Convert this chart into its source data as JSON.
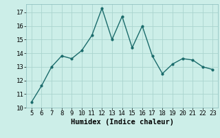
{
  "x": [
    5,
    6,
    7,
    8,
    9,
    10,
    11,
    12,
    13,
    14,
    15,
    16,
    17,
    18,
    19,
    20,
    21,
    22,
    23
  ],
  "y": [
    10.4,
    11.6,
    13.0,
    13.8,
    13.6,
    14.2,
    15.3,
    17.3,
    15.0,
    16.7,
    14.4,
    16.0,
    13.8,
    12.5,
    13.2,
    13.6,
    13.5,
    13.0,
    12.8
  ],
  "line_color": "#1a6b6b",
  "marker": "o",
  "marker_size": 2.0,
  "linewidth": 1.0,
  "background_color": "#cceee8",
  "grid_color": "#aad4ce",
  "xlabel": "Humidex (Indice chaleur)",
  "xlabel_fontsize": 7.5,
  "tick_fontsize": 6.5,
  "xlim": [
    4.5,
    23.5
  ],
  "ylim": [
    10,
    17.6
  ],
  "yticks": [
    10,
    11,
    12,
    13,
    14,
    15,
    16,
    17
  ],
  "xticks": [
    5,
    6,
    7,
    8,
    9,
    10,
    11,
    12,
    13,
    14,
    15,
    16,
    17,
    18,
    19,
    20,
    21,
    22,
    23
  ]
}
